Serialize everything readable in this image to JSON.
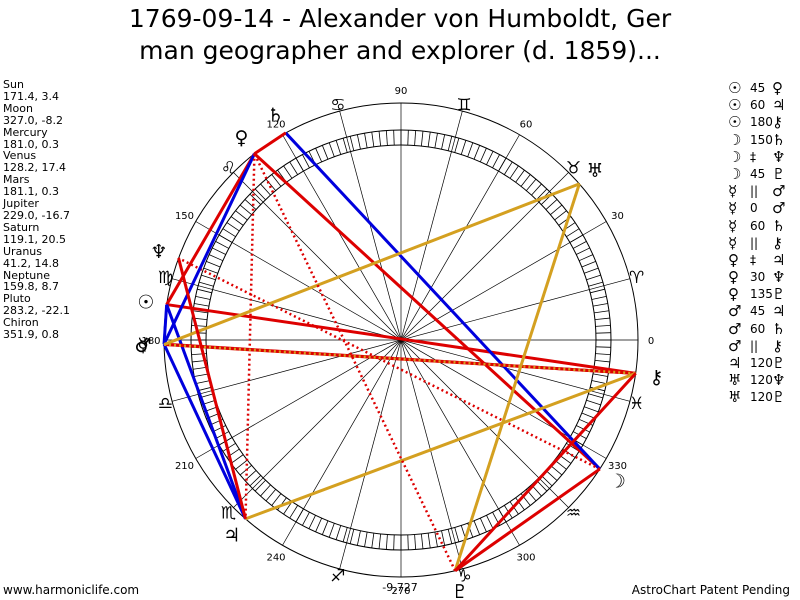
{
  "title": {
    "line1": "1769-09-14 - Alexander von Humboldt, Ger",
    "line2": "man geographer and explorer (d. 1859)..."
  },
  "positions": [
    {
      "name": "Sun",
      "value": "171.4, 3.4"
    },
    {
      "name": "Moon",
      "value": "327.0, -8.2"
    },
    {
      "name": "Mercury",
      "value": "181.0, 0.3"
    },
    {
      "name": "Venus",
      "value": "128.2, 17.4"
    },
    {
      "name": "Mars",
      "value": "181.1, 0.3"
    },
    {
      "name": "Jupiter",
      "value": "229.0, -16.7"
    },
    {
      "name": "Saturn",
      "value": "119.1, 20.5"
    },
    {
      "name": "Uranus",
      "value": "41.2, 14.8"
    },
    {
      "name": "Neptune",
      "value": "159.8, 8.7"
    },
    {
      "name": "Pluto",
      "value": "283.2, -22.1"
    },
    {
      "name": "Chiron",
      "value": "351.9, 0.8"
    }
  ],
  "wheel": {
    "degree_labels": [
      "0",
      "30",
      "60",
      "90",
      "120",
      "150",
      "180",
      "210",
      "240",
      "270",
      "300",
      "330"
    ],
    "total": "-9,727",
    "zodiac_glyphs": [
      "♈",
      "♉",
      "♊",
      "♋",
      "♌",
      "♍",
      "♎",
      "♏",
      "♐",
      "♑",
      "♒",
      "♓"
    ],
    "planets": [
      {
        "glyph": "☉",
        "lon": 171.4
      },
      {
        "glyph": "☽",
        "lon": 327.0
      },
      {
        "glyph": "☿",
        "lon": 181.0
      },
      {
        "glyph": "♀",
        "lon": 128.2
      },
      {
        "glyph": "♂",
        "lon": 181.1
      },
      {
        "glyph": "♃",
        "lon": 229.0
      },
      {
        "glyph": "♄",
        "lon": 119.1
      },
      {
        "glyph": "♅",
        "lon": 41.2
      },
      {
        "glyph": "♆",
        "lon": 159.8
      },
      {
        "glyph": "♇",
        "lon": 283.2
      },
      {
        "glyph": "⚷",
        "lon": 351.9
      }
    ],
    "aspect_lines": [
      {
        "a": 0,
        "b": 3,
        "color": "#dd0000",
        "style": "solid"
      },
      {
        "a": 0,
        "b": 10,
        "color": "#dd0000",
        "style": "solid"
      },
      {
        "a": 0,
        "b": 5,
        "color": "#0000dd",
        "style": "solid"
      },
      {
        "a": 0,
        "b": 2,
        "color": "#0000dd",
        "style": "solid"
      },
      {
        "a": 1,
        "b": 3,
        "color": "#dd0000",
        "style": "solid"
      },
      {
        "a": 1,
        "b": 6,
        "color": "#0000dd",
        "style": "solid"
      },
      {
        "a": 1,
        "b": 8,
        "color": "#dd0000",
        "style": "dotted"
      },
      {
        "a": 2,
        "b": 10,
        "color": "#dd0000",
        "style": "solid"
      },
      {
        "a": 2,
        "b": 5,
        "color": "#0000dd",
        "style": "solid"
      },
      {
        "a": 2,
        "b": 3,
        "color": "#0000dd",
        "style": "solid"
      },
      {
        "a": 3,
        "b": 5,
        "color": "#dd0000",
        "style": "dotted"
      },
      {
        "a": 3,
        "b": 6,
        "color": "#dd0000",
        "style": "solid"
      },
      {
        "a": 4,
        "b": 10,
        "color": "#dd0000",
        "style": "solid"
      },
      {
        "a": 4,
        "b": 7,
        "color": "#d4a020",
        "style": "solid"
      },
      {
        "a": 4,
        "b": 10,
        "color": "#d4a020",
        "style": "dotted"
      },
      {
        "a": 5,
        "b": 10,
        "color": "#d4a020",
        "style": "solid"
      },
      {
        "a": 5,
        "b": 8,
        "color": "#dd0000",
        "style": "solid"
      },
      {
        "a": 7,
        "b": 9,
        "color": "#d4a020",
        "style": "solid"
      },
      {
        "a": 9,
        "b": 10,
        "color": "#dd0000",
        "style": "solid"
      },
      {
        "a": 9,
        "b": 1,
        "color": "#dd0000",
        "style": "solid"
      },
      {
        "a": 9,
        "b": 3,
        "color": "#dd0000",
        "style": "dotted"
      }
    ]
  },
  "aspects": [
    {
      "p1": "☉",
      "angle": "45",
      "p2": "♀"
    },
    {
      "p1": "☉",
      "angle": "60",
      "p2": "♃"
    },
    {
      "p1": "☉",
      "angle": "180",
      "p2": "⚷"
    },
    {
      "p1": "☽",
      "angle": "150",
      "p2": "♄"
    },
    {
      "p1": "☽",
      "angle": "‡",
      "p2": "♆"
    },
    {
      "p1": "☽",
      "angle": "45",
      "p2": "♇"
    },
    {
      "p1": "☿",
      "angle": "||",
      "p2": "♂"
    },
    {
      "p1": "☿",
      "angle": "0",
      "p2": "♂"
    },
    {
      "p1": "☿",
      "angle": "60",
      "p2": "♄"
    },
    {
      "p1": "☿",
      "angle": "||",
      "p2": "⚷"
    },
    {
      "p1": "♀",
      "angle": "‡",
      "p2": "♃"
    },
    {
      "p1": "♀",
      "angle": "30",
      "p2": "♆"
    },
    {
      "p1": "♀",
      "angle": "135",
      "p2": "♇"
    },
    {
      "p1": "♂",
      "angle": "45",
      "p2": "♃"
    },
    {
      "p1": "♂",
      "angle": "60",
      "p2": "♄"
    },
    {
      "p1": "♂",
      "angle": "||",
      "p2": "⚷"
    },
    {
      "p1": "♃",
      "angle": "120",
      "p2": "♇"
    },
    {
      "p1": "♅",
      "angle": "120",
      "p2": "♆"
    },
    {
      "p1": "♅",
      "angle": "120",
      "p2": "♇"
    }
  ],
  "footer": {
    "left": "www.harmoniclife.com",
    "right": "AstroChart Patent Pending"
  }
}
